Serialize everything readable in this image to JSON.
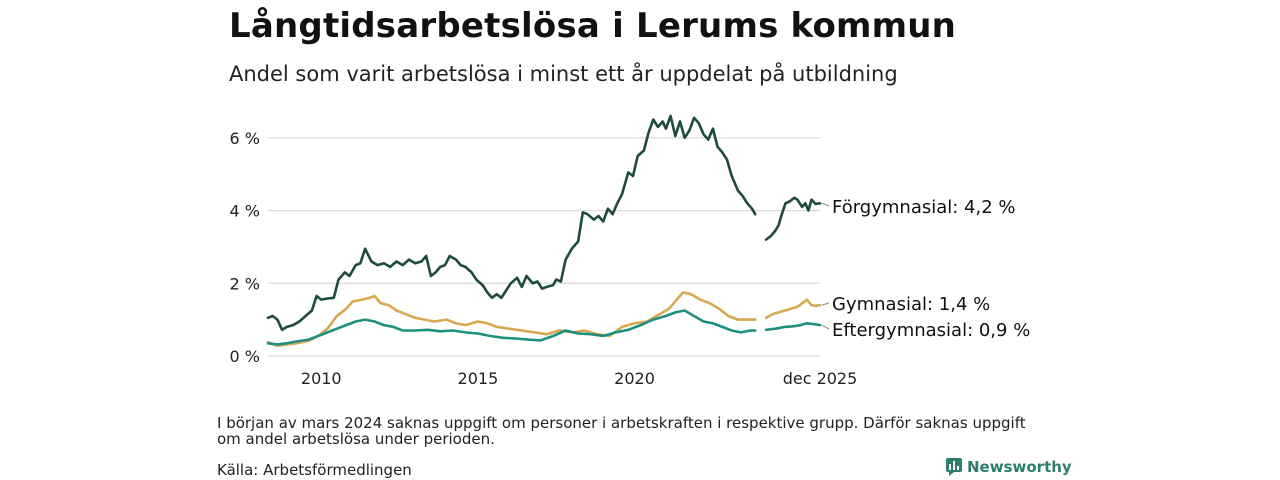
{
  "header": {
    "title": "Långtidsarbetslösa i Lerums kommun",
    "subtitle": "Andel som varit arbetslösa i minst ett år uppdelat på utbildning"
  },
  "footer": {
    "note": "I början av mars 2024 saknas uppgift om personer i arbetskraften i respektive grupp. Därför saknas uppgift om andel arbetslösa under perioden.",
    "source": "Källa: Arbetsförmedlingen",
    "brand": "Newsworthy"
  },
  "chart_data": {
    "type": "line",
    "xlabel": "",
    "ylabel": "",
    "xlim": [
      2008.3,
      2025.92
    ],
    "ylim": [
      0,
      6.6
    ],
    "grid": true,
    "y_ticks": [
      {
        "value": 0,
        "label": "0 %"
      },
      {
        "value": 2,
        "label": "2 %"
      },
      {
        "value": 4,
        "label": "4 %"
      },
      {
        "value": 6,
        "label": "6 %"
      }
    ],
    "x_ticks": [
      {
        "value": 2010,
        "label": "2010"
      },
      {
        "value": 2015,
        "label": "2015"
      },
      {
        "value": 2020,
        "label": "2020"
      },
      {
        "value": 2025.92,
        "label": "dec 2025"
      }
    ],
    "series": [
      {
        "name": "Förgymnasial",
        "end_label": "Förgymnasial: 4,2 %",
        "color": "#1f4a40",
        "segments": [
          [
            [
              2008.3,
              1.05
            ],
            [
              2008.45,
              1.1
            ],
            [
              2008.6,
              1.0
            ],
            [
              2008.75,
              0.72
            ],
            [
              2008.9,
              0.8
            ],
            [
              2009.1,
              0.85
            ],
            [
              2009.3,
              0.95
            ],
            [
              2009.5,
              1.1
            ],
            [
              2009.7,
              1.25
            ],
            [
              2009.85,
              1.65
            ],
            [
              2010.0,
              1.55
            ],
            [
              2010.2,
              1.58
            ],
            [
              2010.4,
              1.6
            ],
            [
              2010.55,
              2.1
            ],
            [
              2010.75,
              2.3
            ],
            [
              2010.9,
              2.2
            ],
            [
              2011.1,
              2.5
            ],
            [
              2011.25,
              2.55
            ],
            [
              2011.4,
              2.95
            ],
            [
              2011.6,
              2.6
            ],
            [
              2011.8,
              2.5
            ],
            [
              2012.0,
              2.55
            ],
            [
              2012.2,
              2.45
            ],
            [
              2012.4,
              2.6
            ],
            [
              2012.6,
              2.5
            ],
            [
              2012.8,
              2.65
            ],
            [
              2013.0,
              2.55
            ],
            [
              2013.2,
              2.6
            ],
            [
              2013.35,
              2.75
            ],
            [
              2013.5,
              2.2
            ],
            [
              2013.65,
              2.3
            ],
            [
              2013.8,
              2.45
            ],
            [
              2013.95,
              2.5
            ],
            [
              2014.1,
              2.75
            ],
            [
              2014.3,
              2.65
            ],
            [
              2014.45,
              2.5
            ],
            [
              2014.6,
              2.45
            ],
            [
              2014.8,
              2.3
            ],
            [
              2014.95,
              2.1
            ],
            [
              2015.15,
              1.95
            ],
            [
              2015.3,
              1.75
            ],
            [
              2015.45,
              1.6
            ],
            [
              2015.6,
              1.7
            ],
            [
              2015.75,
              1.6
            ],
            [
              2015.9,
              1.8
            ],
            [
              2016.05,
              2.0
            ],
            [
              2016.25,
              2.15
            ],
            [
              2016.4,
              1.9
            ],
            [
              2016.55,
              2.2
            ],
            [
              2016.75,
              2.0
            ],
            [
              2016.9,
              2.05
            ],
            [
              2017.05,
              1.85
            ],
            [
              2017.2,
              1.9
            ],
            [
              2017.4,
              1.95
            ],
            [
              2017.5,
              2.1
            ],
            [
              2017.65,
              2.05
            ],
            [
              2017.8,
              2.65
            ],
            [
              2018.0,
              2.95
            ],
            [
              2018.2,
              3.15
            ],
            [
              2018.35,
              3.95
            ],
            [
              2018.5,
              3.9
            ],
            [
              2018.7,
              3.75
            ],
            [
              2018.85,
              3.85
            ],
            [
              2019.0,
              3.7
            ],
            [
              2019.15,
              4.05
            ],
            [
              2019.3,
              3.9
            ],
            [
              2019.45,
              4.2
            ],
            [
              2019.6,
              4.45
            ],
            [
              2019.8,
              5.05
            ],
            [
              2019.95,
              4.95
            ],
            [
              2020.1,
              5.5
            ],
            [
              2020.3,
              5.65
            ],
            [
              2020.45,
              6.15
            ],
            [
              2020.6,
              6.5
            ],
            [
              2020.75,
              6.3
            ],
            [
              2020.9,
              6.45
            ],
            [
              2021.0,
              6.25
            ],
            [
              2021.15,
              6.6
            ],
            [
              2021.3,
              6.05
            ],
            [
              2021.45,
              6.45
            ],
            [
              2021.6,
              6.0
            ],
            [
              2021.75,
              6.2
            ],
            [
              2021.9,
              6.55
            ],
            [
              2022.05,
              6.4
            ],
            [
              2022.2,
              6.1
            ],
            [
              2022.35,
              5.95
            ],
            [
              2022.5,
              6.25
            ],
            [
              2022.65,
              5.75
            ],
            [
              2022.8,
              5.6
            ],
            [
              2022.95,
              5.4
            ],
            [
              2023.1,
              4.95
            ],
            [
              2023.3,
              4.55
            ],
            [
              2023.45,
              4.4
            ],
            [
              2023.6,
              4.2
            ],
            [
              2023.75,
              4.05
            ],
            [
              2023.85,
              3.9
            ]
          ],
          [
            [
              2024.2,
              3.2
            ],
            [
              2024.35,
              3.3
            ],
            [
              2024.5,
              3.45
            ],
            [
              2024.6,
              3.6
            ],
            [
              2024.7,
              3.9
            ],
            [
              2024.82,
              4.2
            ],
            [
              2024.95,
              4.25
            ],
            [
              2025.1,
              4.35
            ],
            [
              2025.2,
              4.3
            ],
            [
              2025.35,
              4.1
            ],
            [
              2025.45,
              4.2
            ],
            [
              2025.55,
              4.0
            ],
            [
              2025.65,
              4.3
            ],
            [
              2025.78,
              4.18
            ],
            [
              2025.92,
              4.2
            ]
          ]
        ]
      },
      {
        "name": "Gymnasial",
        "end_label": "Gymnasial: 1,4 %",
        "color": "#d8a751",
        "segments": [
          [
            [
              2008.3,
              0.38
            ],
            [
              2008.6,
              0.28
            ],
            [
              2008.9,
              0.32
            ],
            [
              2009.2,
              0.35
            ],
            [
              2009.6,
              0.42
            ],
            [
              2009.9,
              0.55
            ],
            [
              2010.2,
              0.75
            ],
            [
              2010.5,
              1.1
            ],
            [
              2010.8,
              1.3
            ],
            [
              2011.0,
              1.5
            ],
            [
              2011.3,
              1.55
            ],
            [
              2011.55,
              1.6
            ],
            [
              2011.7,
              1.65
            ],
            [
              2011.9,
              1.45
            ],
            [
              2012.15,
              1.4
            ],
            [
              2012.4,
              1.25
            ],
            [
              2012.7,
              1.15
            ],
            [
              2013.0,
              1.05
            ],
            [
              2013.3,
              1.0
            ],
            [
              2013.6,
              0.95
            ],
            [
              2014.0,
              1.0
            ],
            [
              2014.3,
              0.9
            ],
            [
              2014.6,
              0.85
            ],
            [
              2015.0,
              0.95
            ],
            [
              2015.3,
              0.9
            ],
            [
              2015.6,
              0.8
            ],
            [
              2016.0,
              0.75
            ],
            [
              2016.4,
              0.7
            ],
            [
              2016.8,
              0.65
            ],
            [
              2017.2,
              0.6
            ],
            [
              2017.6,
              0.7
            ],
            [
              2018.0,
              0.65
            ],
            [
              2018.4,
              0.7
            ],
            [
              2018.8,
              0.6
            ],
            [
              2019.2,
              0.55
            ],
            [
              2019.6,
              0.8
            ],
            [
              2020.0,
              0.9
            ],
            [
              2020.4,
              0.95
            ],
            [
              2020.8,
              1.15
            ],
            [
              2021.1,
              1.3
            ],
            [
              2021.4,
              1.6
            ],
            [
              2021.55,
              1.75
            ],
            [
              2021.8,
              1.7
            ],
            [
              2022.1,
              1.55
            ],
            [
              2022.4,
              1.45
            ],
            [
              2022.7,
              1.3
            ],
            [
              2023.0,
              1.1
            ],
            [
              2023.3,
              1.0
            ],
            [
              2023.6,
              1.0
            ],
            [
              2023.85,
              1.0
            ]
          ],
          [
            [
              2024.2,
              1.05
            ],
            [
              2024.4,
              1.15
            ],
            [
              2024.6,
              1.2
            ],
            [
              2024.8,
              1.25
            ],
            [
              2025.0,
              1.3
            ],
            [
              2025.2,
              1.35
            ],
            [
              2025.35,
              1.45
            ],
            [
              2025.5,
              1.55
            ],
            [
              2025.65,
              1.4
            ],
            [
              2025.8,
              1.38
            ],
            [
              2025.92,
              1.4
            ]
          ]
        ]
      },
      {
        "name": "Eftergymnasial",
        "end_label": "Eftergymnasial: 0,9 %",
        "color": "#1f9080",
        "segments": [
          [
            [
              2008.3,
              0.35
            ],
            [
              2008.6,
              0.32
            ],
            [
              2008.9,
              0.35
            ],
            [
              2009.2,
              0.4
            ],
            [
              2009.6,
              0.45
            ],
            [
              2009.9,
              0.55
            ],
            [
              2010.2,
              0.65
            ],
            [
              2010.5,
              0.75
            ],
            [
              2010.8,
              0.85
            ],
            [
              2011.1,
              0.95
            ],
            [
              2011.4,
              1.0
            ],
            [
              2011.7,
              0.95
            ],
            [
              2012.0,
              0.85
            ],
            [
              2012.3,
              0.8
            ],
            [
              2012.6,
              0.7
            ],
            [
              2013.0,
              0.7
            ],
            [
              2013.4,
              0.72
            ],
            [
              2013.8,
              0.68
            ],
            [
              2014.2,
              0.7
            ],
            [
              2014.6,
              0.65
            ],
            [
              2015.0,
              0.62
            ],
            [
              2015.4,
              0.55
            ],
            [
              2015.8,
              0.5
            ],
            [
              2016.2,
              0.48
            ],
            [
              2016.6,
              0.45
            ],
            [
              2017.0,
              0.43
            ],
            [
              2017.4,
              0.55
            ],
            [
              2017.8,
              0.7
            ],
            [
              2018.2,
              0.62
            ],
            [
              2018.6,
              0.6
            ],
            [
              2019.0,
              0.55
            ],
            [
              2019.4,
              0.65
            ],
            [
              2019.8,
              0.72
            ],
            [
              2020.2,
              0.85
            ],
            [
              2020.6,
              1.0
            ],
            [
              2021.0,
              1.1
            ],
            [
              2021.3,
              1.2
            ],
            [
              2021.6,
              1.25
            ],
            [
              2021.9,
              1.1
            ],
            [
              2022.2,
              0.95
            ],
            [
              2022.5,
              0.9
            ],
            [
              2022.8,
              0.8
            ],
            [
              2023.1,
              0.7
            ],
            [
              2023.4,
              0.65
            ],
            [
              2023.7,
              0.7
            ],
            [
              2023.85,
              0.7
            ]
          ],
          [
            [
              2024.2,
              0.72
            ],
            [
              2024.5,
              0.75
            ],
            [
              2024.8,
              0.8
            ],
            [
              2025.1,
              0.82
            ],
            [
              2025.3,
              0.85
            ],
            [
              2025.5,
              0.9
            ],
            [
              2025.7,
              0.88
            ],
            [
              2025.92,
              0.85
            ]
          ]
        ]
      }
    ]
  }
}
